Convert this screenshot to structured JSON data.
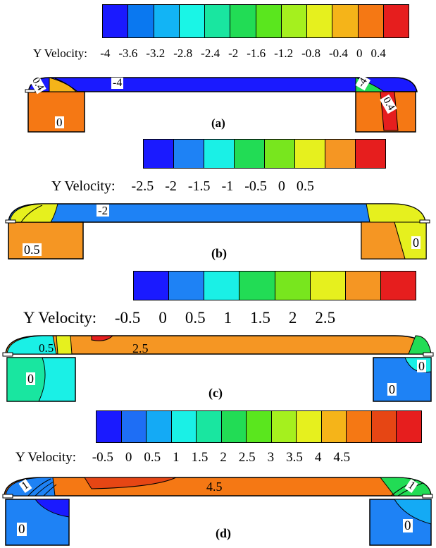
{
  "panels": [
    {
      "id": "a",
      "caption": "(a)",
      "legend_title": "Y Velocity:",
      "ticks": [
        "-4",
        "-3.6",
        "-3.2",
        "-2.8",
        "-2.4",
        "-2",
        "-1.6",
        "-1.2",
        "-0.8",
        "-0.4",
        "0",
        "0.4"
      ],
      "colors": [
        "#1a1aff",
        "#0a78f0",
        "#12b4f5",
        "#1af5e6",
        "#19e6a0",
        "#22dc55",
        "#5ae61e",
        "#a5f01e",
        "#e6f01e",
        "#f5b419",
        "#f57814",
        "#e61e1e"
      ],
      "labels": {
        "channel": "-4",
        "left_corner": "0.4",
        "left_cavity": "0",
        "right_corner": "-4",
        "right_cavity": "0.4"
      },
      "main_color": "#1a1aff",
      "left_color": "#f57814",
      "right_color": "#f57814"
    },
    {
      "id": "b",
      "caption": "(b)",
      "legend_title": "Y Velocity:",
      "ticks": [
        "-2.5",
        "-2",
        "-1.5",
        "-1",
        "-0.5",
        "0",
        "0.5"
      ],
      "colors": [
        "#1a1aff",
        "#1e82f5",
        "#1af0e6",
        "#22dc55",
        "#78e61e",
        "#e6f01e",
        "#f59623",
        "#e61e1e"
      ],
      "labels": {
        "channel": "-2",
        "left_cavity": "0.5",
        "right_cavity": "0"
      },
      "main_color": "#1e82f5",
      "left_color": "#f59623",
      "right_color": "#f59623"
    },
    {
      "id": "c",
      "caption": "(c)",
      "legend_title": "Y Velocity:",
      "ticks": [
        "-0.5",
        "0",
        "0.5",
        "1",
        "1.5",
        "2",
        "2.5"
      ],
      "colors": [
        "#1a1aff",
        "#1e82f5",
        "#1af0e6",
        "#22dc55",
        "#78e61e",
        "#e6f01e",
        "#f59623",
        "#e61e1e"
      ],
      "labels": {
        "channel": "2.5",
        "left_corner": "0.5",
        "left_cavity": "0",
        "right_corner": "0",
        "right_cavity": "0"
      },
      "main_color": "#f59623",
      "left_color": "#1af0e6",
      "right_color": "#1e82f5"
    },
    {
      "id": "d",
      "caption": "(d)",
      "legend_title": "Y Velocity:",
      "ticks": [
        "-0.5",
        "0",
        "0.5",
        "1",
        "1.5",
        "2",
        "2.5",
        "3",
        "3.5",
        "4",
        "4.5"
      ],
      "colors": [
        "#1a1aff",
        "#1e6ef5",
        "#14aaf5",
        "#1af0e6",
        "#19e6a0",
        "#22dc55",
        "#5ae61e",
        "#a5f01e",
        "#e6f01e",
        "#f5b419",
        "#f57814",
        "#e64614",
        "#e61e1e"
      ],
      "labels": {
        "channel": "4.5",
        "left_corner": "1",
        "left_cavity": "0",
        "right_corner": "1",
        "right_cavity": "0"
      },
      "main_color": "#f57814",
      "left_color": "#1e82f5",
      "right_color": "#1e82f5"
    }
  ]
}
